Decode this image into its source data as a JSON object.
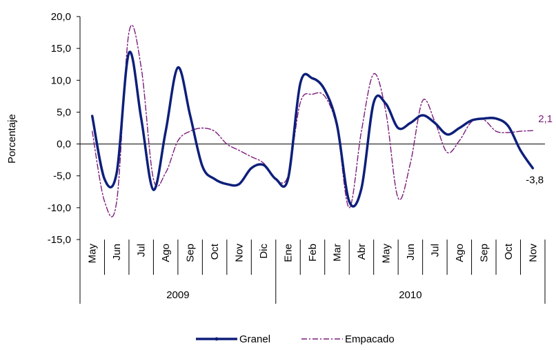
{
  "chart_data": {
    "type": "line",
    "xlabel": "",
    "ylabel": "Porcentaje",
    "ylim": [
      -15,
      20
    ],
    "yticks": [
      20,
      15,
      10,
      5,
      0,
      -5,
      -10,
      -15
    ],
    "ytick_labels": [
      "20,0",
      "15,0",
      "10,0",
      "5,0",
      "0,0",
      "-5,0",
      "-10,0",
      "-15,0"
    ],
    "grid": false,
    "legend_position": "bottom",
    "categories": [
      "May",
      "Jun",
      "Jul",
      "Ago",
      "Sep",
      "Oct",
      "Nov",
      "Dic",
      "Ene",
      "Feb",
      "Mar",
      "Abr",
      "May",
      "Jun",
      "Jul",
      "Ago",
      "Sep",
      "Oct",
      "Nov"
    ],
    "years": [
      {
        "label": "2009",
        "start": 0,
        "end": 8
      },
      {
        "label": "2010",
        "start": 8,
        "end": 19
      }
    ],
    "x": [
      0,
      0.5,
      1,
      1.5,
      2,
      2.5,
      3,
      3.5,
      4,
      4.5,
      5,
      5.5,
      6,
      6.5,
      7,
      7.5,
      8,
      8.5,
      9,
      9.5,
      10,
      10.5,
      11,
      11.5,
      12,
      12.5,
      13,
      13.5,
      14,
      14.5,
      15,
      15.5,
      16,
      16.5,
      17,
      17.5,
      18
    ],
    "series": [
      {
        "name": "Granel",
        "color": "#0e1f7a",
        "style": "solid",
        "values": [
          4.4,
          -5.5,
          -4.5,
          14.3,
          4.0,
          -7.2,
          2.0,
          12.0,
          4.5,
          -3.5,
          -5.5,
          -6.3,
          -6.3,
          -3.8,
          -3.3,
          -5.5,
          -5.5,
          9.5,
          10.3,
          8.5,
          3.0,
          -9.0,
          -7.0,
          6.5,
          6.3,
          2.5,
          3.3,
          4.5,
          3.3,
          1.5,
          2.5,
          3.7,
          4.0,
          4.0,
          2.8,
          -1.0,
          -3.8
        ]
      },
      {
        "name": "Empacado",
        "color": "#7a1a7a",
        "style": "dash-dot",
        "values": [
          2.0,
          -9.0,
          -9.0,
          17.5,
          12.0,
          -5.5,
          -4.5,
          0.5,
          2.0,
          2.5,
          2.0,
          0,
          -1.0,
          -2.0,
          -3.0,
          -5.5,
          -5.0,
          6.5,
          7.8,
          7.5,
          2.5,
          -10.0,
          2.0,
          11.0,
          5.0,
          -8.5,
          -3.0,
          6.8,
          3.5,
          -1.3,
          0.5,
          3.5,
          3.8,
          2.0,
          1.8,
          2.0,
          2.1
        ]
      }
    ],
    "end_labels": [
      {
        "series": "Empacado",
        "text": "2,1"
      },
      {
        "series": "Granel",
        "text": "-3,8"
      }
    ]
  }
}
